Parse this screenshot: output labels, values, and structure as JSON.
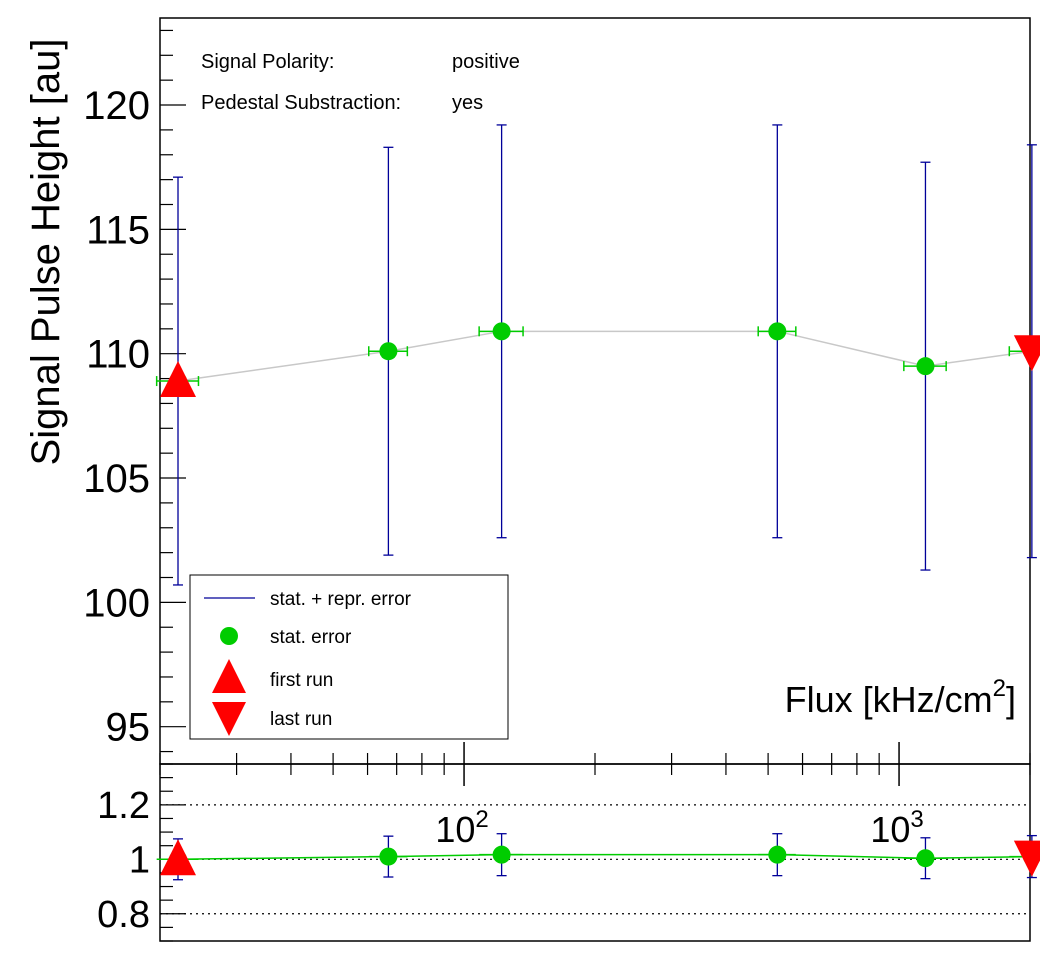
{
  "chart_data": [
    {
      "type": "scatter",
      "panel": "main",
      "xscale": "log",
      "xlim": [
        20,
        2000
      ],
      "ylim": [
        93.5,
        123.5
      ],
      "ylabel": "Signal Pulse Height [au]",
      "xlabel": "Flux [kHz/cm",
      "xlabel_sup": "2",
      "xlabel_close": "]",
      "yticks": [
        "95",
        "100",
        "105",
        "110",
        "115",
        "120"
      ],
      "info": [
        {
          "label": "Signal Polarity:",
          "value": "positive"
        },
        {
          "label": "Pedestal Substraction:",
          "value": "yes"
        }
      ],
      "x": [
        22,
        67,
        122,
        525,
        1150,
        2020
      ],
      "y": [
        108.9,
        110.1,
        110.9,
        110.9,
        109.5,
        110.1
      ],
      "stat_xerr": [
        1.5,
        4,
        9,
        30,
        80,
        150
      ],
      "full_yerr": [
        8.2,
        8.2,
        8.3,
        8.3,
        8.2,
        8.3
      ],
      "first_run": {
        "x": 22,
        "y": 108.9
      },
      "last_run": {
        "x": 2020,
        "y": 110.1
      },
      "legend": [
        {
          "key": "line",
          "label": "stat. + repr. error"
        },
        {
          "key": "dot",
          "label": "stat. error"
        },
        {
          "key": "up",
          "label": "first run"
        },
        {
          "key": "down",
          "label": "last run"
        }
      ],
      "colors": {
        "stat": "#00cc00",
        "full": "#000099",
        "marker": "#ff0000",
        "line": "#c8c8c8"
      }
    },
    {
      "type": "scatter",
      "panel": "ratio",
      "xscale": "log",
      "xlim": [
        20,
        2000
      ],
      "ylim": [
        0.7,
        1.35
      ],
      "yticks": [
        "0.8",
        "1",
        "1.2"
      ],
      "xticks": [
        {
          "value": 100,
          "base": "10",
          "exp": "2"
        },
        {
          "value": 1000,
          "base": "10",
          "exp": "3"
        }
      ],
      "x": [
        22,
        67,
        122,
        525,
        1150,
        2020
      ],
      "y": [
        1.0,
        1.01,
        1.017,
        1.017,
        1.004,
        1.01
      ],
      "yerr": [
        0.075,
        0.075,
        0.077,
        0.077,
        0.075,
        0.077
      ],
      "ref_lines": [
        0.8,
        1.0,
        1.2
      ],
      "colors": {
        "line": "#00cc00",
        "err": "#000099",
        "marker": "#ff0000"
      }
    }
  ]
}
